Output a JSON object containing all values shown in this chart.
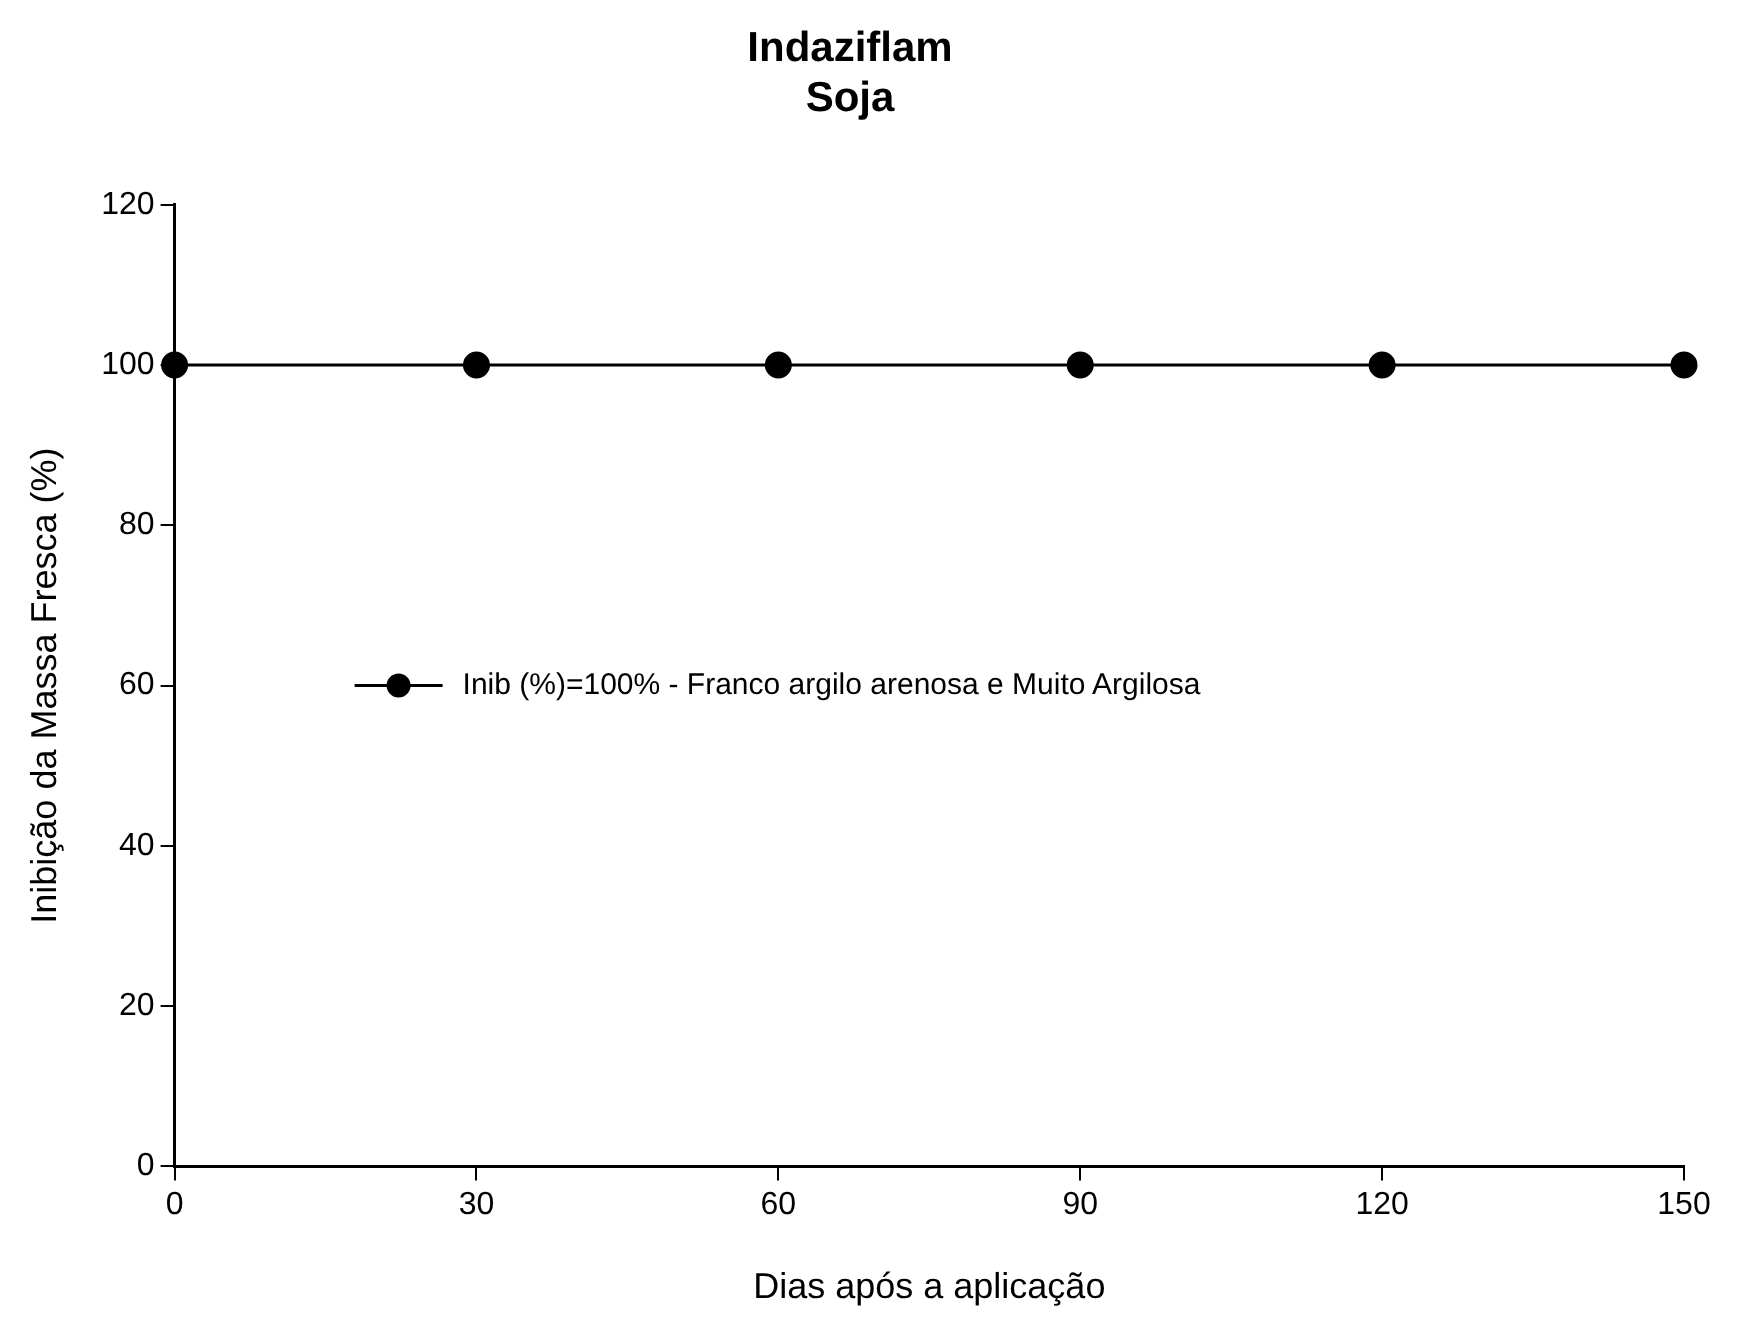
{
  "chart_data": {
    "type": "line",
    "title": "Indaziflam",
    "subtitle": "Soja",
    "xlabel": "Dias após a aplicação",
    "ylabel": "Inibição da Massa Fresca (%)",
    "x": [
      0,
      30,
      60,
      90,
      120,
      150
    ],
    "series": [
      {
        "name": "Inib (%)=100% - Franco argilo arenosa e Muito Argilosa",
        "color": "#000000",
        "values": [
          100,
          100,
          100,
          100,
          100,
          100
        ]
      }
    ],
    "xlim": [
      0,
      150
    ],
    "xticks": [
      0,
      30,
      60,
      90,
      120,
      150
    ],
    "ylim": [
      0,
      120
    ],
    "yticks": [
      0,
      20,
      40,
      60,
      80,
      100,
      120
    ],
    "grid": false,
    "legend": "left",
    "marker": "circle",
    "line_style": "solid"
  }
}
